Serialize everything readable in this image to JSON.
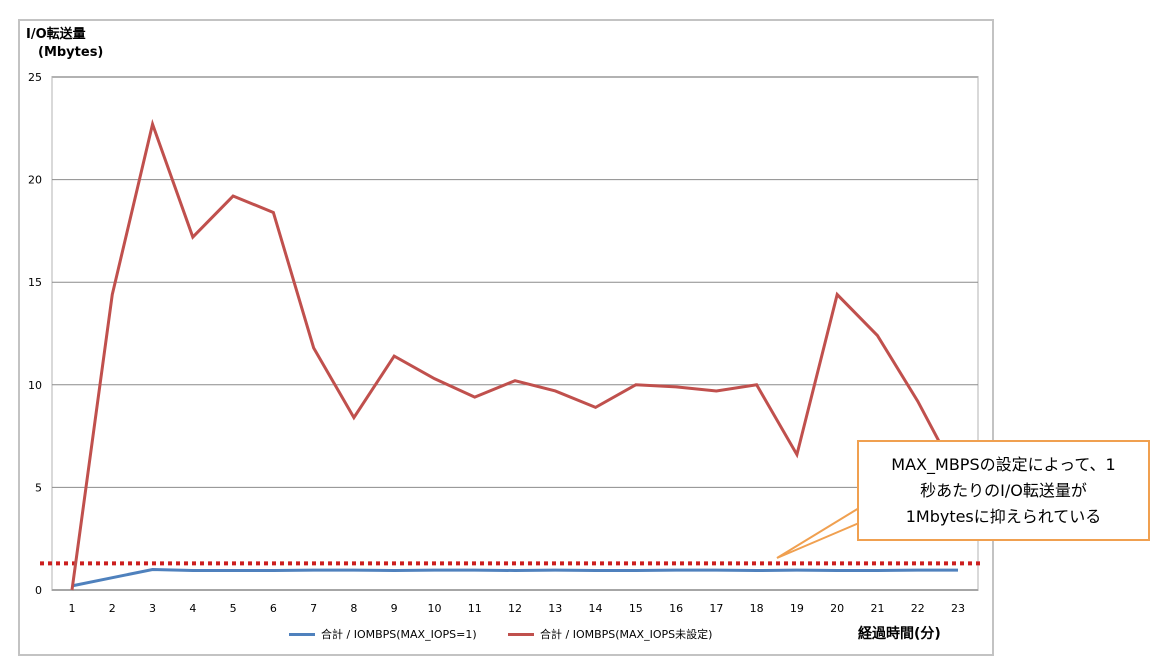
{
  "chart_data": {
    "type": "line",
    "title": "",
    "ylabel": "I/O転送量 (Mbytes)",
    "ylabel_line1": "I/O転送量",
    "ylabel_line2": "(Mbytes)",
    "xlabel": "経過時間(分)",
    "ylim": [
      0,
      25
    ],
    "yticks": [
      "0",
      "5",
      "10",
      "15",
      "20",
      "25"
    ],
    "grid": true,
    "legend_position": "bottom",
    "categories": [
      "1",
      "2",
      "3",
      "4",
      "5",
      "6",
      "7",
      "8",
      "9",
      "10",
      "11",
      "12",
      "13",
      "14",
      "15",
      "16",
      "17",
      "18",
      "19",
      "20",
      "21",
      "22",
      "23"
    ],
    "series": [
      {
        "name": "合計 / IOMBPS(MAX_IOPS=1)",
        "color": "#4f81bd",
        "values": [
          0.2,
          0.6,
          1.0,
          0.95,
          0.95,
          0.95,
          0.97,
          0.97,
          0.95,
          0.97,
          0.97,
          0.95,
          0.97,
          0.95,
          0.95,
          0.97,
          0.97,
          0.95,
          0.97,
          0.95,
          0.95,
          0.97,
          0.97
        ]
      },
      {
        "name": "合計 / IOMBPS(MAX_IOPS未設定)",
        "color": "#c0504d",
        "values": [
          0.0,
          14.4,
          22.7,
          17.2,
          19.2,
          18.4,
          11.8,
          8.4,
          11.4,
          10.3,
          9.4,
          10.2,
          9.7,
          8.9,
          10.0,
          9.9,
          9.7,
          10.0,
          6.6,
          14.4,
          12.4,
          9.2,
          5.5
        ]
      }
    ],
    "reference_line": {
      "value": 1.3,
      "style": "dotted",
      "color": "#cc1f1f"
    },
    "annotations": [
      {
        "text_lines": [
          "MAX_MBPSの設定によって、1",
          "秒あたりのI/O転送量が",
          "1Mbytesに抑えられている"
        ],
        "border_color": "#f0a050"
      }
    ]
  },
  "legend": {
    "items": [
      {
        "label": "合計 / IOMBPS(MAX_IOPS=1)",
        "color": "#4f81bd"
      },
      {
        "label": "合計 / IOMBPS(MAX_IOPS未設定)",
        "color": "#c0504d"
      }
    ]
  }
}
